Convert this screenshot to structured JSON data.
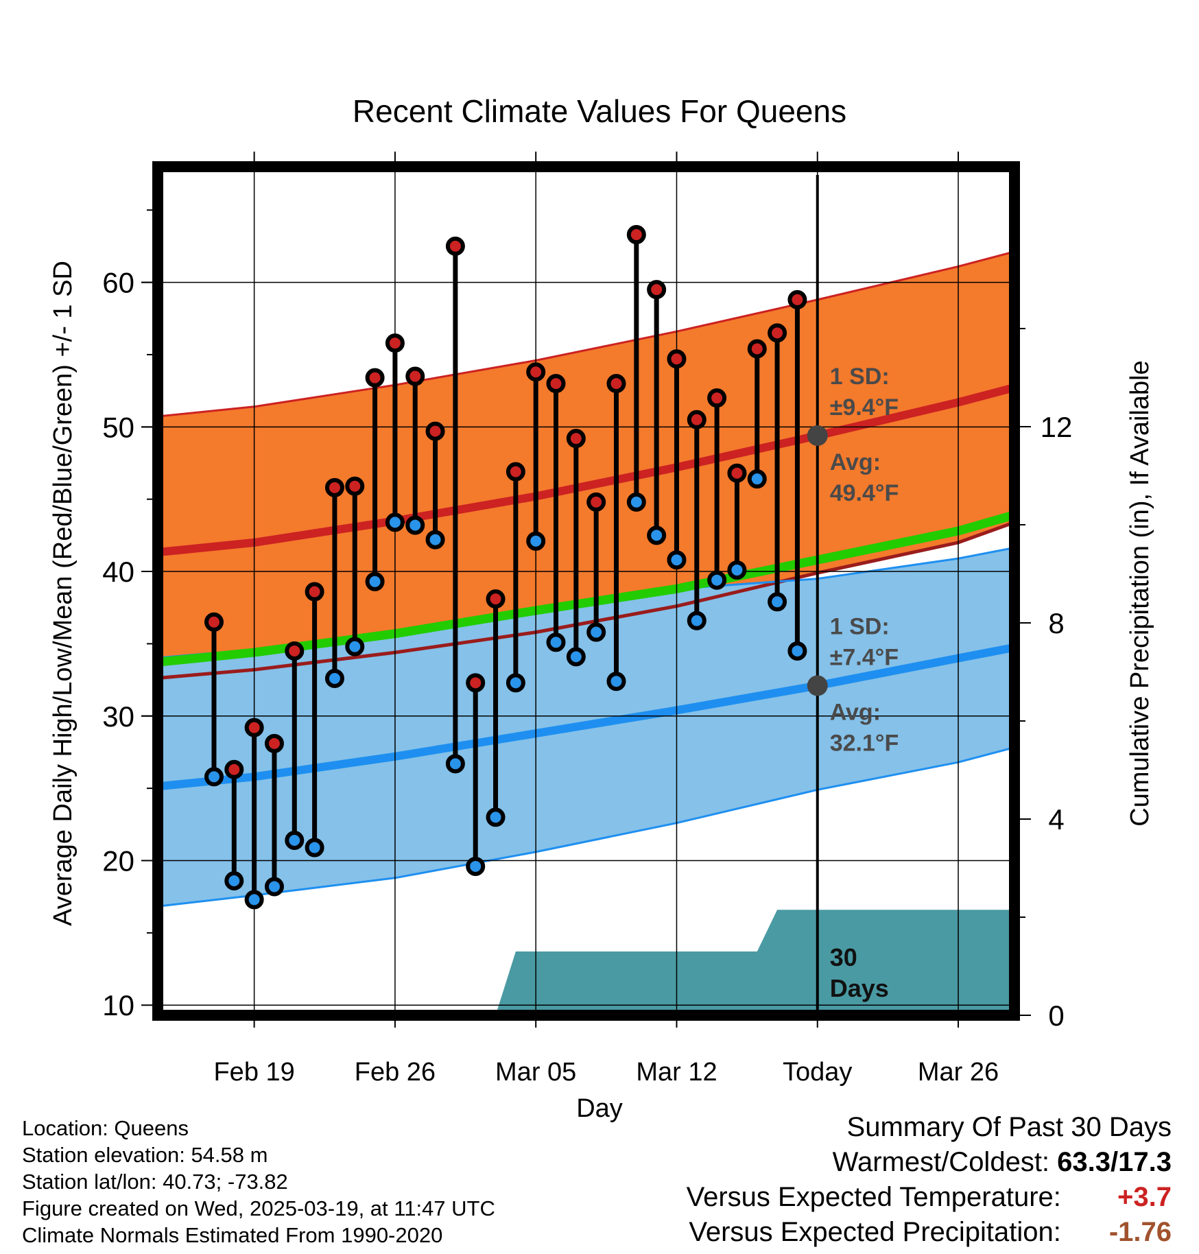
{
  "chart_data": {
    "type": "line",
    "title": "Recent Climate Values For Queens",
    "xlabel": "Day",
    "ylabel": "Average Daily High/Low/Mean (Red/Blue/Green) +/- 1 SD",
    "y2label": "Cumulative Precipitation (in), If Available",
    "ylim": [
      9.3,
      68
    ],
    "y2lim": [
      0,
      17.3
    ],
    "xlim": [
      "2025-02-14",
      "2025-03-29"
    ],
    "x_ticks": [
      {
        "date": "2025-02-19",
        "label": "Feb 19"
      },
      {
        "date": "2025-02-26",
        "label": "Feb 26"
      },
      {
        "date": "2025-03-05",
        "label": "Mar 05"
      },
      {
        "date": "2025-03-12",
        "label": "Mar 12"
      },
      {
        "date": "2025-03-19",
        "label": "Today"
      },
      {
        "date": "2025-03-26",
        "label": "Mar 26"
      }
    ],
    "y_ticks": [
      10,
      20,
      30,
      40,
      50,
      60
    ],
    "y2_ticks": [
      0,
      4,
      8,
      12
    ],
    "grid": true,
    "today": "2025-03-19",
    "normals": {
      "dates": [
        "2025-02-14",
        "2025-02-19",
        "2025-02-26",
        "2025-03-05",
        "2025-03-12",
        "2025-03-19",
        "2025-03-26",
        "2025-03-29"
      ],
      "avg_high": [
        41.3,
        42.0,
        43.5,
        45.2,
        47.2,
        49.4,
        51.7,
        52.8
      ],
      "high_plus_sd": [
        50.7,
        51.4,
        52.9,
        54.6,
        56.6,
        58.8,
        61.1,
        62.2
      ],
      "high_minus_sd": [
        32.6,
        33.2,
        34.4,
        35.8,
        37.6,
        39.9,
        42.0,
        43.5
      ],
      "avg_low": [
        25.1,
        25.8,
        27.2,
        28.8,
        30.4,
        32.1,
        34.0,
        34.8
      ],
      "low_plus_sd": [
        34.0,
        34.6,
        35.8,
        37.4,
        38.8,
        39.5,
        40.9,
        41.7
      ],
      "low_minus_sd": [
        16.8,
        17.6,
        18.8,
        20.6,
        22.6,
        24.9,
        26.8,
        27.9
      ],
      "avg_mean": [
        33.7,
        34.4,
        35.7,
        37.3,
        38.8,
        40.8,
        42.8,
        44.0
      ]
    },
    "series": [
      {
        "name": "High",
        "color": "#cc2222",
        "x": [
          "2025-02-17",
          "2025-02-18",
          "2025-02-19",
          "2025-02-20",
          "2025-02-21",
          "2025-02-22",
          "2025-02-23",
          "2025-02-24",
          "2025-02-25",
          "2025-02-26",
          "2025-02-27",
          "2025-02-28",
          "2025-03-01",
          "2025-03-02",
          "2025-03-03",
          "2025-03-04",
          "2025-03-05",
          "2025-03-06",
          "2025-03-07",
          "2025-03-08",
          "2025-03-09",
          "2025-03-10",
          "2025-03-11",
          "2025-03-12",
          "2025-03-13",
          "2025-03-14",
          "2025-03-15",
          "2025-03-16",
          "2025-03-17",
          "2025-03-18"
        ],
        "values": [
          36.5,
          26.3,
          29.2,
          28.1,
          34.5,
          38.6,
          45.8,
          45.9,
          53.4,
          55.8,
          53.5,
          49.7,
          62.5,
          32.3,
          38.1,
          46.9,
          53.8,
          53.0,
          49.2,
          44.8,
          53.0,
          63.3,
          59.5,
          54.7,
          50.5,
          52.0,
          46.8,
          55.4,
          56.5,
          58.8
        ]
      },
      {
        "name": "Low",
        "color": "#2a93ea",
        "x": [
          "2025-02-17",
          "2025-02-18",
          "2025-02-19",
          "2025-02-20",
          "2025-02-21",
          "2025-02-22",
          "2025-02-23",
          "2025-02-24",
          "2025-02-25",
          "2025-02-26",
          "2025-02-27",
          "2025-02-28",
          "2025-03-01",
          "2025-03-02",
          "2025-03-03",
          "2025-03-04",
          "2025-03-05",
          "2025-03-06",
          "2025-03-07",
          "2025-03-08",
          "2025-03-09",
          "2025-03-10",
          "2025-03-11",
          "2025-03-12",
          "2025-03-13",
          "2025-03-14",
          "2025-03-15",
          "2025-03-16",
          "2025-03-17",
          "2025-03-18"
        ],
        "values": [
          25.8,
          18.6,
          17.3,
          18.2,
          21.4,
          20.9,
          32.6,
          34.8,
          39.3,
          43.4,
          43.2,
          42.2,
          26.7,
          19.6,
          23.0,
          32.3,
          42.1,
          35.1,
          34.1,
          35.8,
          32.4,
          44.8,
          42.5,
          40.8,
          36.6,
          39.4,
          40.1,
          46.4,
          37.9,
          34.5
        ]
      }
    ],
    "precipitation": {
      "x": [
        "2025-02-17",
        "2025-03-03",
        "2025-03-04",
        "2025-03-16",
        "2025-03-17",
        "2025-03-29"
      ],
      "values": [
        0,
        0,
        1.3,
        1.3,
        2.15,
        2.15
      ]
    },
    "annotations": {
      "high_sd": "1 SD:",
      "high_sd_val": "±9.4°F",
      "high_avg": "Avg:",
      "high_avg_val": "49.4°F",
      "low_sd": "1 SD:",
      "low_sd_val": "±7.4°F",
      "low_avg": "Avg:",
      "low_avg_val": "32.1°F",
      "days_a": "30",
      "days_b": "Days"
    }
  },
  "footer": {
    "location": "Location: Queens",
    "elevation": "Station elevation: 54.58 m",
    "latlon": "Station lat/lon: 40.73; -73.82",
    "created": "Figure created on Wed, 2025-03-19, at 11:47 UTC",
    "normals": "Climate Normals Estimated From 1990-2020"
  },
  "summary": {
    "heading": "Summary Of Past 30 Days",
    "warm_cold_label": "Warmest/Coldest:",
    "warm_cold_value": "63.3/17.3",
    "temp_label": "Versus Expected Temperature:",
    "temp_value": "+3.7",
    "temp_color": "#cc2222",
    "precip_label": "Versus Expected Precipitation:",
    "precip_value": "-1.76",
    "precip_color": "#a0522d"
  },
  "colors": {
    "high_band": "#f47a2c",
    "high_line": "#cc2222",
    "low_band": "#85c1e9",
    "low_line": "#1e8ff0",
    "mean_line": "#22cc00",
    "precip_fill": "#4a9aa3",
    "annotation": "#4a4a4a"
  }
}
